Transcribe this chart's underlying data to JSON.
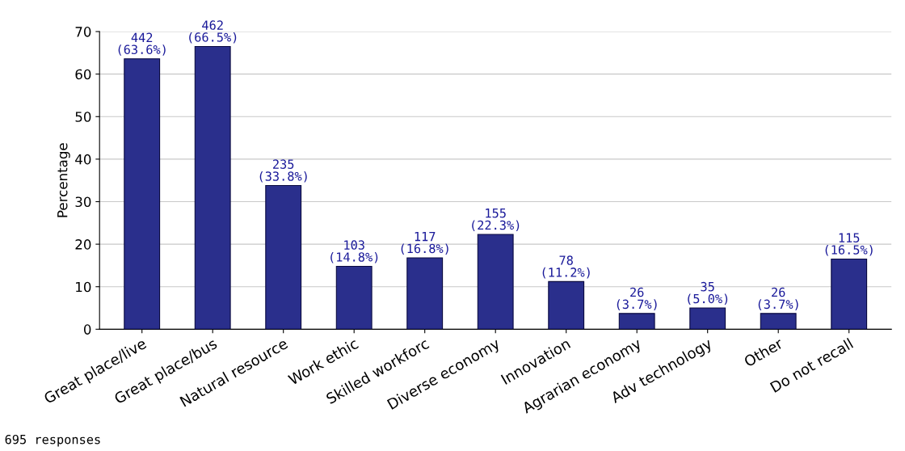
{
  "chart_data": {
    "type": "bar",
    "ylabel": "Percentage",
    "categories": [
      "Great place/live",
      "Great place/bus",
      "Natural resource",
      "Work ethic",
      "Skilled workforc",
      "Diverse economy",
      "Innovation",
      "Agrarian economy",
      "Adv technology",
      "Other",
      "Do not recall"
    ],
    "values": [
      63.6,
      66.5,
      33.8,
      14.8,
      16.8,
      22.3,
      11.2,
      3.7,
      5.0,
      3.7,
      16.5
    ],
    "value_labels": [
      "442\n(63.6%)",
      "462\n(66.5%)",
      "235\n(33.8%)",
      "103\n(14.8%)",
      "117\n(16.8%)",
      "155\n(22.3%)",
      "78\n(11.2%)",
      "26\n(3.7%)",
      "35\n(5.0%)",
      "26\n(3.7%)",
      "115\n(16.5%)"
    ],
    "color": "#2a2f8c",
    "ylim": [
      0,
      70
    ],
    "yticks": [
      0,
      10,
      20,
      30,
      40,
      50,
      60,
      70
    ],
    "grid": "y",
    "legend": false,
    "annotations": [
      "695 responses"
    ]
  }
}
